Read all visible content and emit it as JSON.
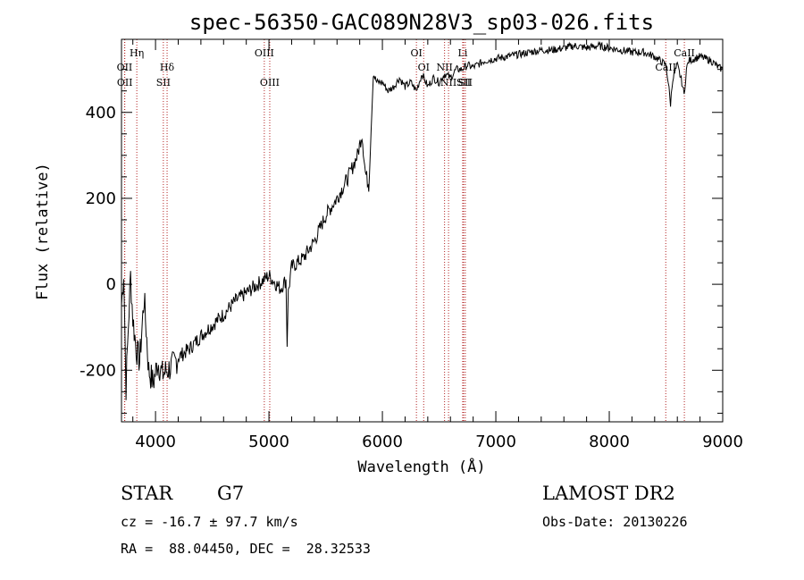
{
  "chart_data": {
    "type": "line",
    "title": "spec-56350-GAC089N28V3_sp03-026.fits",
    "xlabel": "Wavelength (Å)",
    "ylabel": "Flux (relative)",
    "xlim": [
      3700,
      9000
    ],
    "ylim": [
      -320,
      570
    ],
    "xticks": [
      4000,
      5000,
      6000,
      7000,
      8000,
      9000
    ],
    "yticks": [
      -200,
      0,
      200,
      400
    ],
    "xtick_labels": [
      "4000",
      "5000",
      "6000",
      "7000",
      "8000",
      "9000"
    ],
    "ytick_labels": [
      "-200",
      "0",
      "200",
      "400"
    ],
    "series": [
      {
        "x": [
          3700,
          3720,
          3740,
          3760,
          3780,
          3800,
          3830,
          3860,
          3900,
          3940,
          3980,
          4020,
          4060,
          4100,
          4150,
          4200,
          4300,
          4400,
          4500,
          4600,
          4700,
          4800,
          4900,
          5000,
          5100,
          5150,
          5160,
          5170,
          5200,
          5300,
          5400,
          5500,
          5600,
          5700,
          5780,
          5820,
          5850,
          5880,
          5900,
          5920,
          5950,
          6000,
          6050,
          6100,
          6150,
          6200,
          6250,
          6300,
          6350,
          6400,
          6450,
          6500,
          6550,
          6600,
          6650,
          6700,
          6750,
          6800,
          6900,
          7000,
          7100,
          7200,
          7300,
          7400,
          7500,
          7600,
          7700,
          7800,
          7900,
          8000,
          8100,
          8200,
          8300,
          8400,
          8500,
          8520,
          8540,
          8560,
          8600,
          8640,
          8660,
          8680,
          8700,
          8800,
          8900,
          8960,
          9000
        ],
        "y": [
          -50,
          30,
          -240,
          -100,
          20,
          -80,
          -150,
          -180,
          -30,
          -200,
          -230,
          -180,
          -210,
          -200,
          -190,
          -170,
          -150,
          -120,
          -95,
          -70,
          -40,
          -20,
          0,
          20,
          -10,
          10,
          -140,
          -20,
          40,
          60,
          100,
          160,
          200,
          250,
          300,
          350,
          260,
          230,
          360,
          490,
          470,
          470,
          450,
          460,
          480,
          460,
          470,
          450,
          490,
          460,
          480,
          470,
          490,
          480,
          500,
          500,
          510,
          505,
          520,
          525,
          530,
          535,
          540,
          545,
          545,
          550,
          555,
          550,
          555,
          550,
          545,
          540,
          540,
          530,
          510,
          470,
          420,
          480,
          510,
          470,
          440,
          500,
          520,
          530,
          520,
          505,
          500
        ]
      }
    ],
    "spectral_lines": [
      {
        "label": "Hη",
        "x": 3835,
        "row": 1
      },
      {
        "label": "OII",
        "x": 3727,
        "row": 2
      },
      {
        "label": "OII",
        "x": 3729,
        "row": 3
      },
      {
        "label": "Hδ",
        "x": 4102,
        "row": 2
      },
      {
        "label": "SII",
        "x": 4069,
        "row": 3
      },
      {
        "label": "OIII",
        "x": 4959,
        "row": 1
      },
      {
        "label": "OIII",
        "x": 5007,
        "row": 3
      },
      {
        "label": "OI",
        "x": 6300,
        "row": 1
      },
      {
        "label": "OI",
        "x": 6364,
        "row": 2
      },
      {
        "label": "NII",
        "x": 6548,
        "row": 2
      },
      {
        "label": "NII",
        "x": 6583,
        "row": 3
      },
      {
        "label": "Li",
        "x": 6708,
        "row": 1
      },
      {
        "label": "SII",
        "x": 6716,
        "row": 3
      },
      {
        "label": "SII",
        "x": 6731,
        "row": 3
      },
      {
        "label": "CaII",
        "x": 8498,
        "row": 2
      },
      {
        "label": "CaII",
        "x": 8662,
        "row": 1
      }
    ]
  },
  "info": {
    "object_class": "STAR",
    "subclass": "G7",
    "survey": "LAMOST DR2",
    "redshift": "cz = -16.7 ± 97.7 km/s",
    "obs_date": "Obs-Date: 20130226",
    "coords": "RA =  88.04450, DEC =  28.32533"
  }
}
